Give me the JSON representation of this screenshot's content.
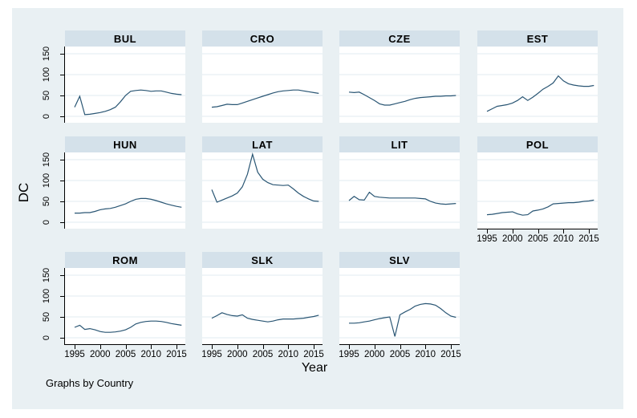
{
  "figure": {
    "ylabel": "DC",
    "xlabel": "Year",
    "note": "Graphs by Country",
    "colors": {
      "figure_bg": "#e9f0f3",
      "strip_bg": "#d4e1ea",
      "plot_bg": "#ffffff",
      "gridline": "#e1ebf1",
      "line": "#2a5674",
      "axis": "#000000"
    }
  },
  "chart_data": {
    "type": "line",
    "layout": "faceted-small-multiples",
    "facet_by": "Country",
    "title": "",
    "xlabel": "Year",
    "ylabel": "DC",
    "note": "Graphs by Country",
    "grid": true,
    "legend": "none",
    "x": [
      1995,
      1996,
      1997,
      1998,
      1999,
      2000,
      2001,
      2002,
      2003,
      2004,
      2005,
      2006,
      2007,
      2008,
      2009,
      2010,
      2011,
      2012,
      2013,
      2014,
      2015,
      2016
    ],
    "x_ticks": [
      1995,
      2000,
      2005,
      2010,
      2015
    ],
    "y_ticks": [
      0,
      50,
      100,
      150
    ],
    "xlim": [
      1993,
      2017
    ],
    "ylim": [
      -15,
      167
    ],
    "facets": [
      "BUL",
      "CRO",
      "CZE",
      "EST",
      "HUN",
      "LAT",
      "LIT",
      "POL",
      "ROM",
      "SLK",
      "SLV"
    ],
    "series": [
      {
        "name": "BUL",
        "values": [
          22,
          48,
          4,
          5,
          7,
          9,
          12,
          16,
          22,
          35,
          50,
          60,
          62,
          63,
          62,
          60,
          61,
          61,
          58,
          55,
          53,
          52
        ]
      },
      {
        "name": "CRO",
        "values": [
          22,
          23,
          26,
          29,
          28,
          28,
          32,
          36,
          40,
          44,
          48,
          52,
          56,
          59,
          61,
          62,
          63,
          63,
          61,
          59,
          57,
          55
        ]
      },
      {
        "name": "CZE",
        "values": [
          58,
          57,
          58,
          52,
          45,
          38,
          30,
          27,
          27,
          30,
          33,
          36,
          40,
          43,
          45,
          46,
          47,
          48,
          48,
          49,
          49,
          50
        ]
      },
      {
        "name": "EST",
        "values": [
          12,
          18,
          24,
          26,
          28,
          32,
          38,
          47,
          38,
          46,
          55,
          65,
          72,
          80,
          97,
          85,
          78,
          75,
          73,
          72,
          72,
          74
        ]
      },
      {
        "name": "HUN",
        "values": [
          22,
          22,
          23,
          23,
          26,
          30,
          32,
          33,
          36,
          40,
          44,
          50,
          55,
          57,
          57,
          55,
          52,
          48,
          44,
          41,
          38,
          36
        ]
      },
      {
        "name": "LAT",
        "values": [
          78,
          48,
          53,
          58,
          63,
          70,
          85,
          115,
          163,
          120,
          103,
          95,
          90,
          89,
          88,
          89,
          80,
          70,
          62,
          56,
          51,
          50
        ]
      },
      {
        "name": "LIT",
        "values": [
          52,
          62,
          54,
          53,
          72,
          62,
          60,
          59,
          58,
          58,
          58,
          58,
          58,
          58,
          57,
          56,
          50,
          46,
          44,
          43,
          44,
          45
        ]
      },
      {
        "name": "POL",
        "values": [
          18,
          19,
          21,
          23,
          24,
          25,
          20,
          17,
          18,
          27,
          29,
          32,
          37,
          44,
          45,
          46,
          47,
          47,
          48,
          50,
          51,
          53
        ]
      },
      {
        "name": "ROM",
        "values": [
          25,
          30,
          20,
          22,
          19,
          15,
          13,
          13,
          14,
          16,
          19,
          25,
          33,
          37,
          39,
          40,
          40,
          39,
          37,
          34,
          32,
          30
        ]
      },
      {
        "name": "SLK",
        "values": [
          47,
          53,
          60,
          56,
          53,
          52,
          55,
          47,
          44,
          42,
          40,
          38,
          40,
          43,
          45,
          45,
          45,
          46,
          47,
          49,
          51,
          54
        ]
      },
      {
        "name": "SLV",
        "values": [
          35,
          35,
          36,
          38,
          40,
          43,
          46,
          48,
          50,
          3,
          55,
          62,
          68,
          76,
          80,
          82,
          81,
          78,
          70,
          60,
          52,
          49
        ]
      }
    ]
  }
}
